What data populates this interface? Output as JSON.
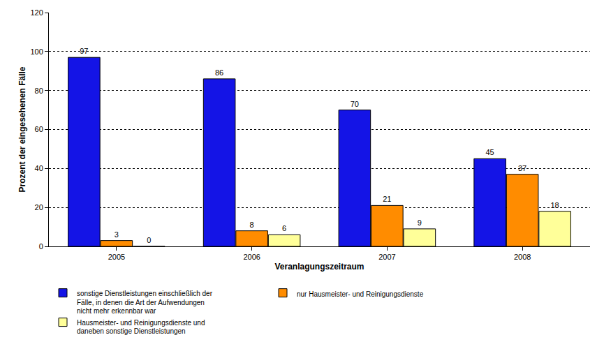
{
  "chart_data": {
    "type": "bar",
    "categories": [
      "2005",
      "2006",
      "2007",
      "2008"
    ],
    "series": [
      {
        "name": "sonstige Dienstleistungen einschließlich der Fälle, in denen die Art der Aufwendungen nicht mehr erkennbar war",
        "color": "#1414e6",
        "values": [
          97,
          86,
          70,
          45
        ]
      },
      {
        "name": "nur Hausmeister- und Reinigungsdienste",
        "color": "#ff8c00",
        "values": [
          3,
          8,
          21,
          37
        ]
      },
      {
        "name": "Hausmeister- und Reinigungsdienste und daneben sonstige Dienstleistungen",
        "color": "#ffff99",
        "values": [
          0,
          6,
          9,
          18
        ]
      }
    ],
    "x_label": "Veranlagungszeitraum",
    "y_label": "Prozent der eingesehenen Fälle",
    "ylim": [
      0,
      120
    ],
    "yticks": [
      0,
      20,
      40,
      60,
      80,
      100,
      120
    ],
    "grid": true,
    "legend": "bottom",
    "data_labels": true
  }
}
